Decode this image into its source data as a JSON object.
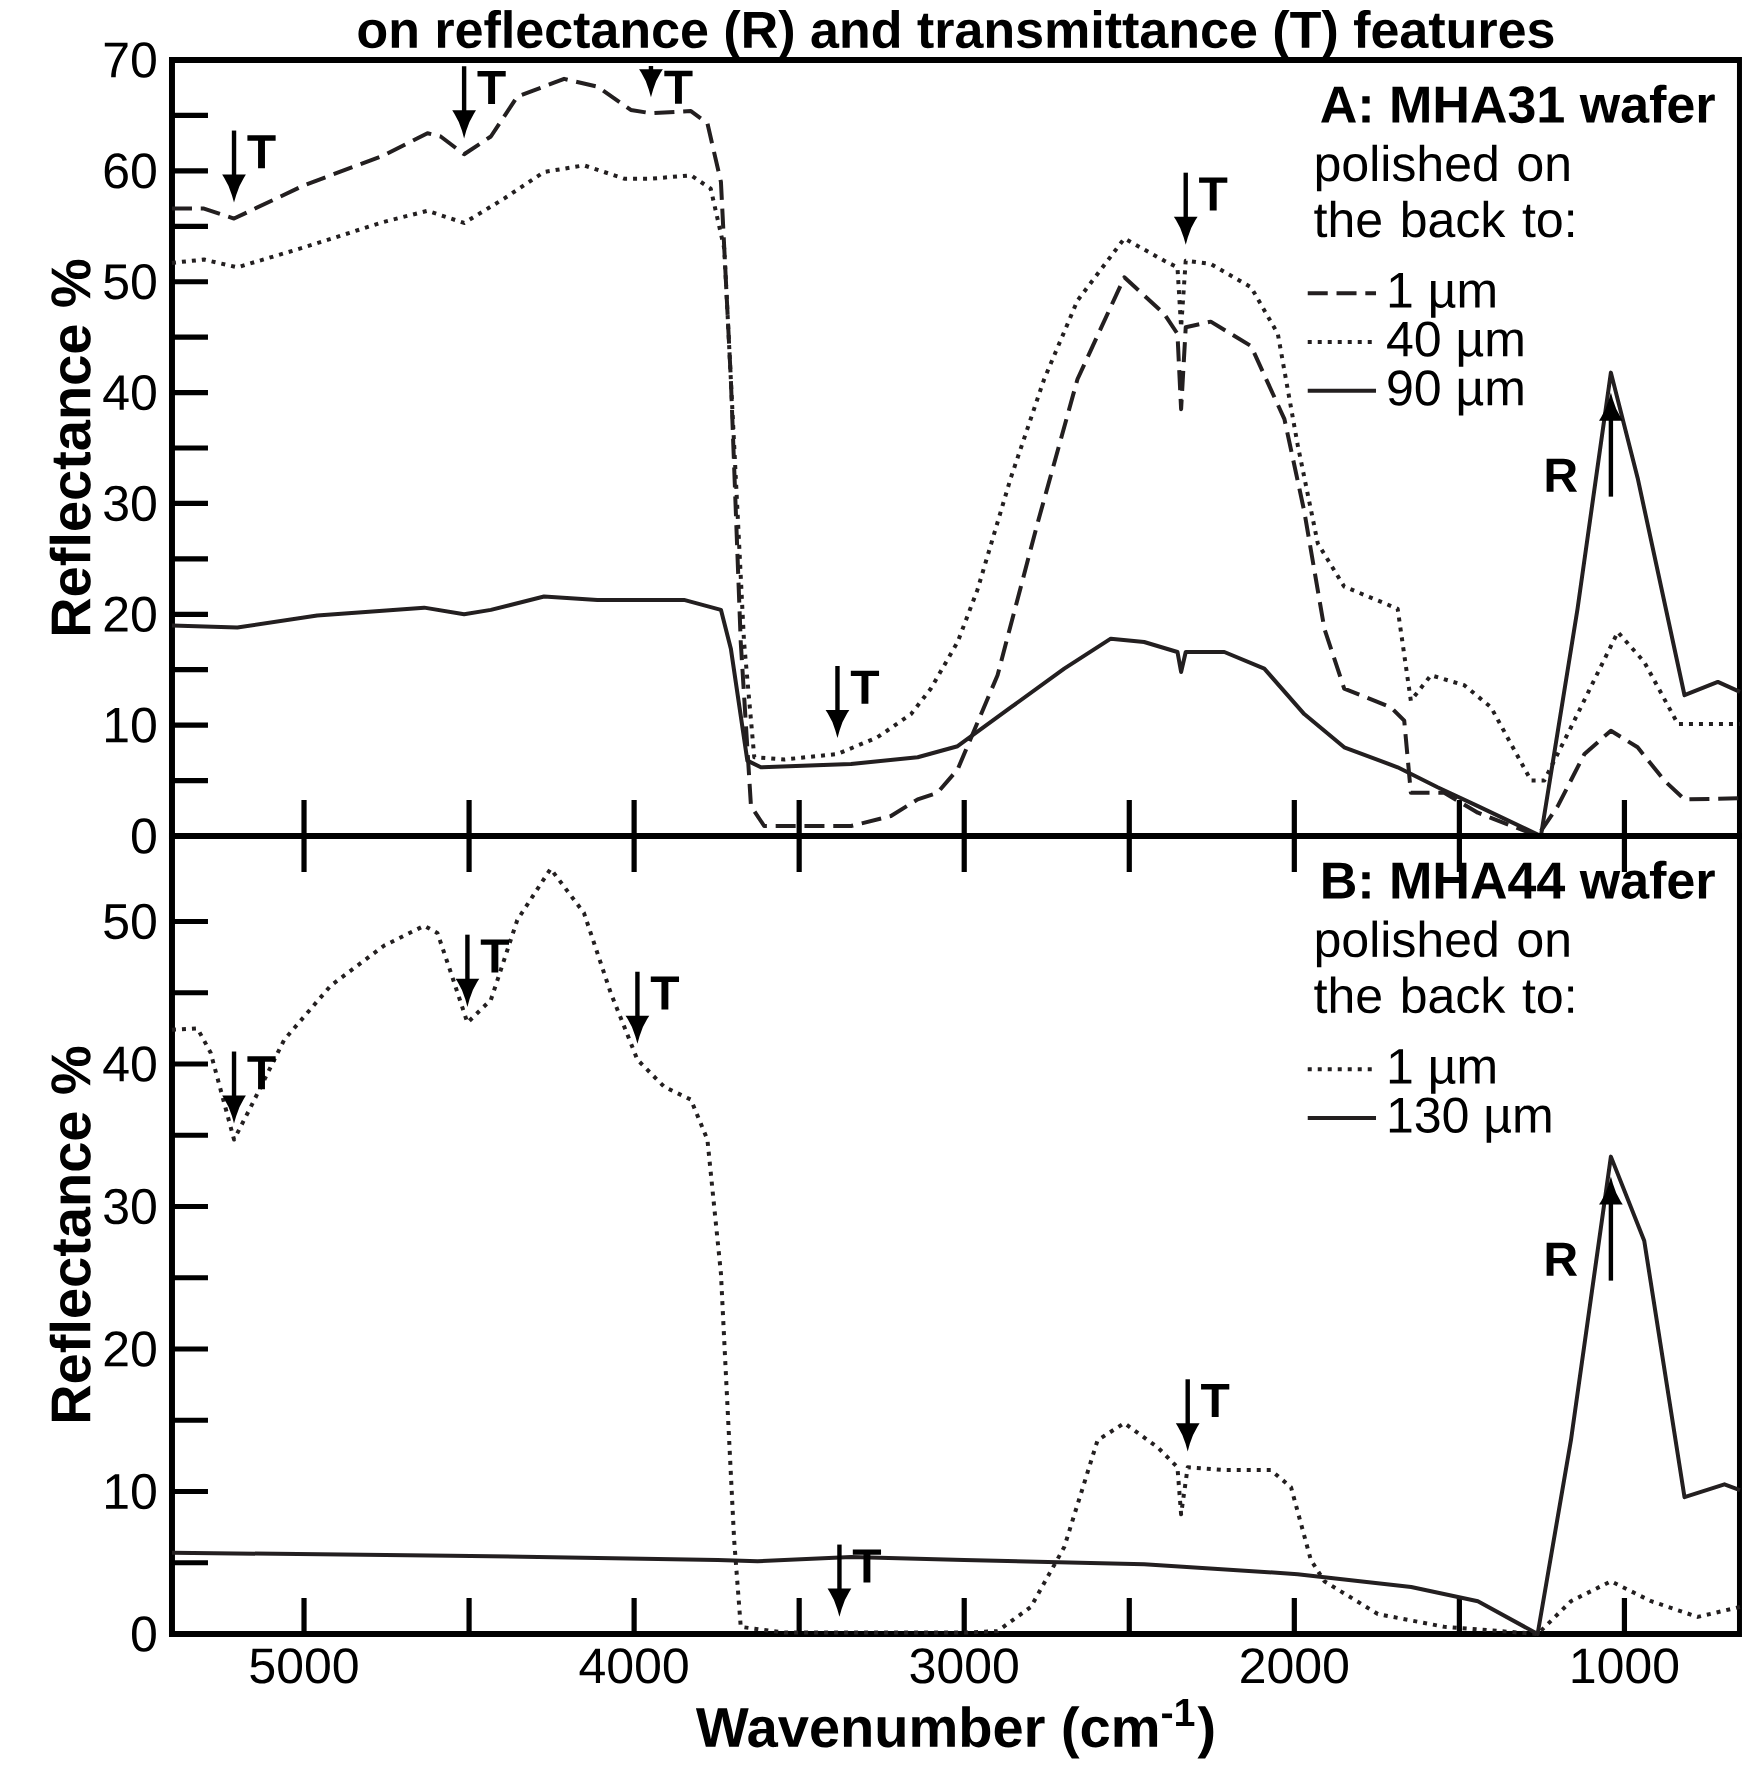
{
  "chart_data": [
    {
      "type": "line",
      "title": "on reflectance (R) and transmittance (T) features",
      "ylabel": "Reflectance %",
      "legend_title": "polished on the back to:",
      "legend": "top right",
      "tick_labels": "y",
      "xlim": [
        5400,
        650
      ],
      "ylim": [
        0,
        70
      ],
      "xticks": [
        5000,
        4000,
        3000,
        2000,
        1000
      ],
      "yticks": [
        0,
        10,
        20,
        30,
        40,
        50,
        60,
        70
      ],
      "annotations": [
        "A: MHA31 wafer",
        {
          "text": "T",
          "x": 5212,
          "y": 55.7
        },
        {
          "text": "T",
          "x": 4515,
          "y": 61.5
        },
        {
          "text": "T",
          "x": 3949,
          "y": 65.2
        },
        {
          "text": "T",
          "x": 3384,
          "y": 7.4
        },
        {
          "text": "T",
          "x": 2329,
          "y": 51.9
        },
        {
          "text": "R",
          "x": 1041,
          "y": 41.8
        }
      ],
      "series": [
        {
          "name": "1 µm",
          "color": "#231f20",
          "line_style": "dashed",
          "x": [
            5400,
            5303,
            5212,
            5000,
            4758,
            4626,
            4586,
            4515,
            4434,
            4354,
            4212,
            4111,
            4010,
            3949,
            3828,
            3778,
            3737,
            3707,
            3677,
            3646,
            3606,
            3343,
            3222,
            3141,
            3081,
            3020,
            2899,
            2778,
            2657,
            2515,
            2394,
            2354,
            2343,
            2329,
            2253,
            2131,
            2030,
            1970,
            1909,
            1849,
            1707,
            1667,
            1647,
            1546,
            1444,
            1263,
            1202,
            1121,
            1041,
            960,
            879,
            818,
            650
          ],
          "values": [
            56.6,
            56.6,
            55.7,
            58.7,
            61.4,
            63.4,
            63.1,
            61.5,
            63.1,
            66.7,
            68.3,
            67.6,
            65.5,
            65.2,
            65.4,
            64.3,
            59,
            41.2,
            17.5,
            2.7,
            0.9,
            0.9,
            1.8,
            3.3,
            3.9,
            6.0,
            14.5,
            28.2,
            41.2,
            50.4,
            47.1,
            45.3,
            38.5,
            45.9,
            46.4,
            44.2,
            37.6,
            29.3,
            18.7,
            13.3,
            11.6,
            10.4,
            3.9,
            3.9,
            2.1,
            0,
            2.7,
            7.4,
            9.5,
            8,
            5,
            3.3,
            3.4
          ]
        },
        {
          "name": "40 µm",
          "color": "#231f20",
          "line_style": "dotted",
          "x": [
            5400,
            5303,
            5202,
            5000,
            4758,
            4626,
            4515,
            4394,
            4273,
            4152,
            4030,
            3949,
            3828,
            3768,
            3727,
            3697,
            3667,
            3636,
            3545,
            3384,
            3263,
            3161,
            3101,
            3020,
            2960,
            2859,
            2758,
            2657,
            2515,
            2394,
            2354,
            2343,
            2329,
            2253,
            2131,
            2050,
            1990,
            1929,
            1849,
            1687,
            1647,
            1586,
            1485,
            1404,
            1283,
            1243,
            1162,
            1020,
            940,
            838,
            650
          ],
          "values": [
            51.7,
            52,
            51.3,
            53.1,
            55.4,
            56.4,
            55.3,
            57.5,
            59.9,
            60.5,
            59.3,
            59.3,
            59.6,
            58.4,
            53,
            35.3,
            17.5,
            7.1,
            6.9,
            7.4,
            8.9,
            11,
            13.3,
            17.5,
            22.2,
            32.3,
            41.2,
            48.3,
            53.9,
            51.9,
            51.3,
            45.9,
            51.9,
            51.6,
            49.5,
            45.3,
            35.3,
            26.4,
            22.5,
            20.5,
            12.2,
            14.5,
            13.6,
            11.6,
            5,
            5,
            9.8,
            18.4,
            15.7,
            10.1,
            10.1
          ]
        },
        {
          "name": "90 µm",
          "color": "#231f20",
          "line_style": "solid",
          "x": [
            5400,
            5202,
            4960,
            4636,
            4515,
            4434,
            4273,
            4111,
            3849,
            3737,
            3707,
            3657,
            3616,
            3343,
            3141,
            3020,
            2859,
            2697,
            2556,
            2455,
            2354,
            2343,
            2329,
            2212,
            2091,
            1970,
            1849,
            1687,
            1566,
            1444,
            1253,
            1142,
            1041,
            960,
            818,
            717,
            650
          ],
          "values": [
            19,
            18.8,
            19.9,
            20.6,
            20,
            20.4,
            21.6,
            21.3,
            21.3,
            20.4,
            16.9,
            6.8,
            6.2,
            6.5,
            7.1,
            8.1,
            11.6,
            15.1,
            17.8,
            17.5,
            16.6,
            14.8,
            16.6,
            16.6,
            15.1,
            11,
            8,
            6.2,
            4.4,
            2.7,
            0,
            20.5,
            41.8,
            32.3,
            12.7,
            13.9,
            13
          ]
        }
      ]
    },
    {
      "type": "line",
      "xlabel": "Wavenumber (cm$^{-1}$)",
      "ylabel": "Reflectance %",
      "legend_title": "polished on the back to:",
      "legend": "top right",
      "xlim": [
        5400,
        650
      ],
      "ylim": [
        0,
        56
      ],
      "xticks": [
        5000,
        4000,
        3000,
        2000,
        1000
      ],
      "yticks": [
        0,
        10,
        20,
        30,
        40,
        50
      ],
      "annotations": [
        "B: MHA44 wafer",
        {
          "text": "T",
          "x": 5212,
          "y": 34.7
        },
        {
          "text": "T",
          "x": 4505,
          "y": 42.9
        },
        {
          "text": "T",
          "x": 3990,
          "y": 40.3
        },
        {
          "text": "T",
          "x": 3378,
          "y": 0.1
        },
        {
          "text": "T",
          "x": 2323,
          "y": 11.7
        },
        {
          "text": "R",
          "x": 1041,
          "y": 33.5
        }
      ],
      "series": [
        {
          "name": "1 µm",
          "color": "#231f20",
          "line_style": "dotted",
          "x": [
            5400,
            5323,
            5283,
            5212,
            5161,
            5060,
            4919,
            4758,
            4636,
            4596,
            4555,
            4505,
            4434,
            4354,
            4253,
            4152,
            4071,
            3990,
            3909,
            3828,
            3778,
            3737,
            3717,
            3697,
            3677,
            3545,
            3378,
            3000,
            2899,
            2798,
            2697,
            2596,
            2515,
            2414,
            2354,
            2343,
            2323,
            2212,
            2071,
            2010,
            1950,
            1909,
            1747,
            1545,
            1263,
            1162,
            1041,
            919,
            778,
            650
          ],
          "values": [
            42.4,
            42.5,
            40.8,
            34.7,
            37,
            41.7,
            45.5,
            48.3,
            49.7,
            49.2,
            46.4,
            42.9,
            44.5,
            50.1,
            53.7,
            50.6,
            45,
            40.3,
            38.4,
            37.5,
            34.7,
            25.3,
            15.9,
            6.6,
            0.5,
            0.1,
            0.1,
            0.1,
            0.2,
            1.9,
            6.1,
            13.6,
            14.8,
            13.1,
            11.7,
            8.4,
            11.7,
            11.5,
            11.5,
            10.3,
            5.2,
            3.7,
            1.4,
            0.5,
            0,
            2.3,
            3.7,
            2.3,
            1.2,
            1.9
          ]
        },
        {
          "name": "130 µm",
          "color": "#231f20",
          "line_style": "solid",
          "x": [
            5400,
            4555,
            3747,
            3626,
            3343,
            3000,
            2455,
            1990,
            1646,
            1444,
            1263,
            1162,
            1041,
            940,
            818,
            697,
            650
          ],
          "values": [
            5.7,
            5.5,
            5.2,
            5.1,
            5.4,
            5.2,
            4.9,
            4.2,
            3.3,
            2.3,
            0,
            13.6,
            33.5,
            27.6,
            9.6,
            10.5,
            10.1
          ]
        }
      ]
    }
  ]
}
